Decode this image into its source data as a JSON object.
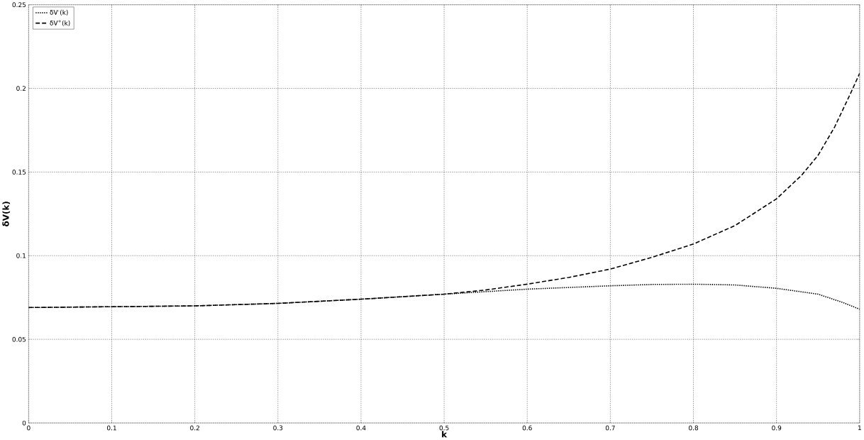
{
  "chart_data": {
    "type": "line",
    "xlabel": "k",
    "ylabel": "δV(k)",
    "xlim": [
      0,
      1
    ],
    "ylim": [
      0,
      0.25
    ],
    "xticks": [
      0,
      0.1,
      0.2,
      0.3,
      0.4,
      0.5,
      0.6,
      0.7,
      0.8,
      0.9,
      1
    ],
    "yticks": [
      0,
      0.05,
      0.1,
      0.15,
      0.2,
      0.25
    ],
    "grid": true,
    "legend": "top left",
    "marker": "none",
    "series": [
      {
        "name": "δV$^{-}$(k)",
        "color": "#000000",
        "line_style": "dotted",
        "x": [
          0,
          0.1,
          0.2,
          0.3,
          0.4,
          0.5,
          0.55,
          0.6,
          0.65,
          0.7,
          0.75,
          0.8,
          0.85,
          0.9,
          0.95,
          0.98,
          1
        ],
        "values": [
          0.069,
          0.0695,
          0.07,
          0.0715,
          0.074,
          0.077,
          0.0785,
          0.08,
          0.081,
          0.082,
          0.0828,
          0.083,
          0.0825,
          0.0805,
          0.077,
          0.072,
          0.068
        ]
      },
      {
        "name": "δV$^{+}$(k)",
        "color": "#000000",
        "line_style": "dashed",
        "x": [
          0,
          0.1,
          0.2,
          0.3,
          0.4,
          0.5,
          0.55,
          0.6,
          0.65,
          0.7,
          0.75,
          0.8,
          0.85,
          0.9,
          0.93,
          0.95,
          0.97,
          0.99,
          1
        ],
        "values": [
          0.069,
          0.0695,
          0.07,
          0.0715,
          0.074,
          0.077,
          0.0795,
          0.083,
          0.087,
          0.092,
          0.099,
          0.107,
          0.118,
          0.134,
          0.148,
          0.16,
          0.177,
          0.198,
          0.209
        ]
      }
    ]
  }
}
